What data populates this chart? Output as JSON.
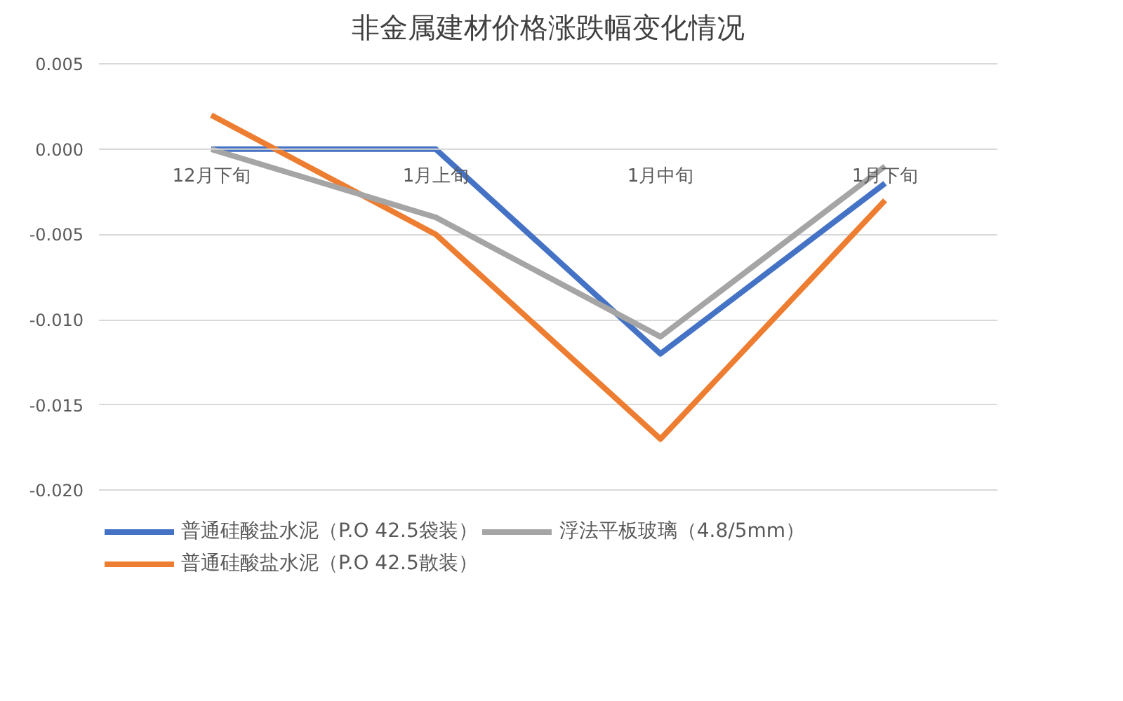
{
  "chart_data": {
    "type": "line",
    "title": "非金属建材价格涨跌幅变化情况",
    "categories": [
      "12月下旬",
      "1月上旬",
      "1月中旬",
      "1月下旬"
    ],
    "series": [
      {
        "name": "普通硅酸盐水泥（P.O 42.5袋装）",
        "color": "#4472c4",
        "values": [
          0.0,
          0.0,
          -0.012,
          -0.002
        ]
      },
      {
        "name": "普通硅酸盐水泥（P.O 42.5散装）",
        "color": "#ed7d31",
        "values": [
          0.002,
          -0.005,
          -0.017,
          -0.003
        ]
      },
      {
        "name": "浮法平板玻璃（4.8/5mm）",
        "color": "#a5a5a5",
        "values": [
          0.0,
          -0.004,
          -0.011,
          -0.001
        ]
      }
    ],
    "ylim": [
      -0.02,
      0.005
    ],
    "yticks": [
      {
        "value": -0.02,
        "label": "-0.020"
      },
      {
        "value": -0.015,
        "label": "-0.015"
      },
      {
        "value": -0.01,
        "label": "-0.010"
      },
      {
        "value": -0.005,
        "label": "-0.005"
      },
      {
        "value": 0,
        "label": "0.000"
      },
      {
        "value": 0.005,
        "label": "0.005"
      }
    ],
    "grid": "y",
    "legend": "bottom",
    "marker": "none",
    "line_style": "solid"
  }
}
